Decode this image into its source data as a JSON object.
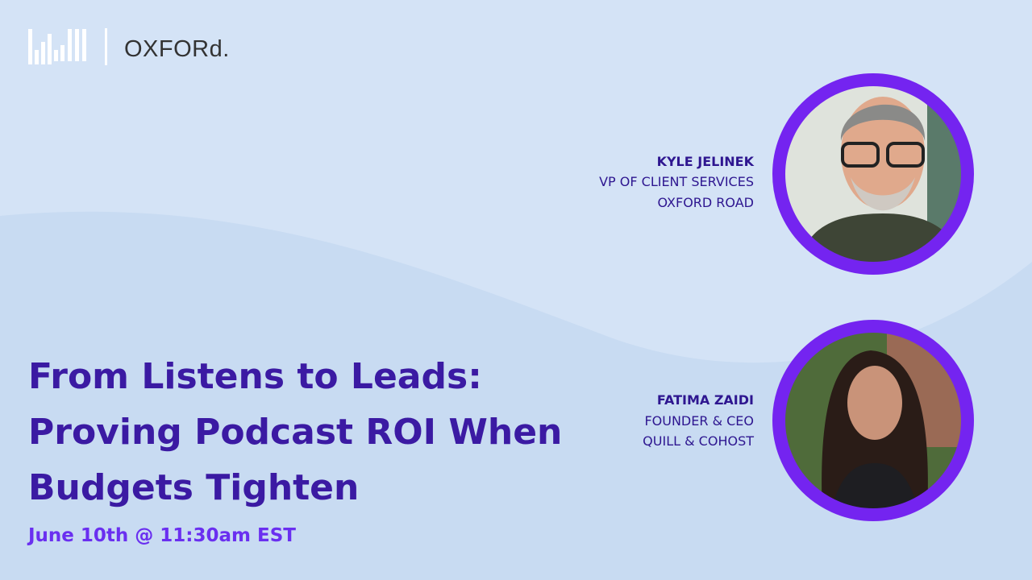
{
  "logo": {
    "text": "OXFORd."
  },
  "event": {
    "title_lines": [
      "From Listens to Leads:",
      "Proving Podcast ROI When",
      "Budgets Tighten"
    ],
    "date": "June 10th @ 11:30am EST"
  },
  "speakers": [
    {
      "name": "KYLE JELINEK",
      "role": "VP OF CLIENT SERVICES",
      "company": "OXFORD ROAD"
    },
    {
      "name": "FATIMA ZAIDI",
      "role": "FOUNDER & CEO",
      "company": "QUILL & COHOST"
    }
  ]
}
